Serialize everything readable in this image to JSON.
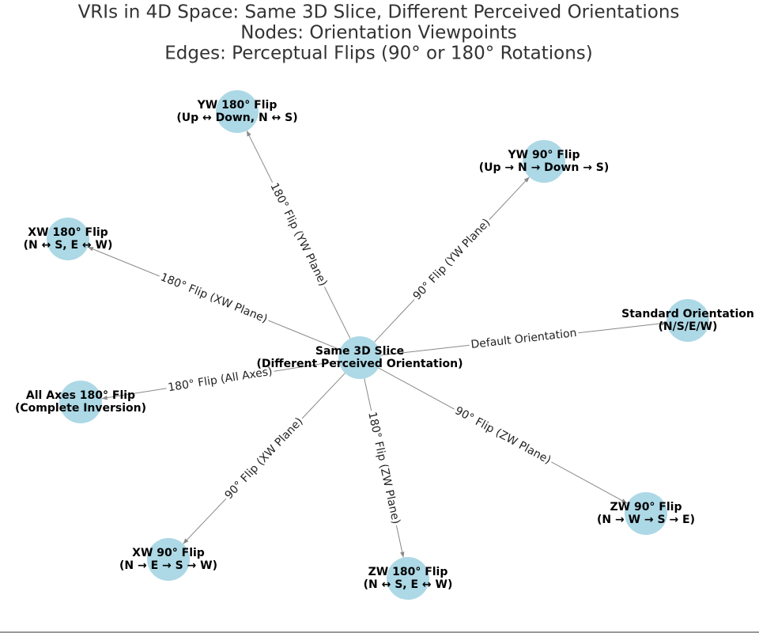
{
  "title": [
    "VRIs in 4D Space: Same 3D Slice, Different Perceived Orientations",
    "Nodes: Orientation Viewpoints",
    "Edges: Perceptual Flips (90° or 180° Rotations)"
  ],
  "nodes": [
    {
      "label": [
        "Same 3D Slice",
        "(Different Perceived Orientation)"
      ]
    },
    {
      "label": [
        "Standard Orientation",
        "(N/S/E/W)"
      ]
    },
    {
      "label": [
        "YW 90° Flip",
        "(Up → N → Down → S)"
      ]
    },
    {
      "label": [
        "YW 180° Flip",
        "(Up ↔ Down, N ↔ S)"
      ]
    },
    {
      "label": [
        "XW 180° Flip",
        "(N ↔ S, E ↔ W)"
      ]
    },
    {
      "label": [
        "All Axes 180° Flip",
        "(Complete Inversion)"
      ]
    },
    {
      "label": [
        "XW 90° Flip",
        "(N → E → S → W)"
      ]
    },
    {
      "label": [
        "ZW 180° Flip",
        "(N ↔ S, E ↔ W)"
      ]
    },
    {
      "label": [
        "ZW 90° Flip",
        "(N → W → S → E)"
      ]
    }
  ],
  "edges": [
    {
      "label": "Default Orientation"
    },
    {
      "label": "90° Flip (YW Plane)"
    },
    {
      "label": "180° Flip (YW Plane)"
    },
    {
      "label": "180° Flip (XW Plane)"
    },
    {
      "label": "180° Flip (All Axes)"
    },
    {
      "label": "90° Flip (XW Plane)"
    },
    {
      "label": "180° Flip (ZW Plane)"
    },
    {
      "label": "90° Flip (ZW Plane)"
    }
  ]
}
